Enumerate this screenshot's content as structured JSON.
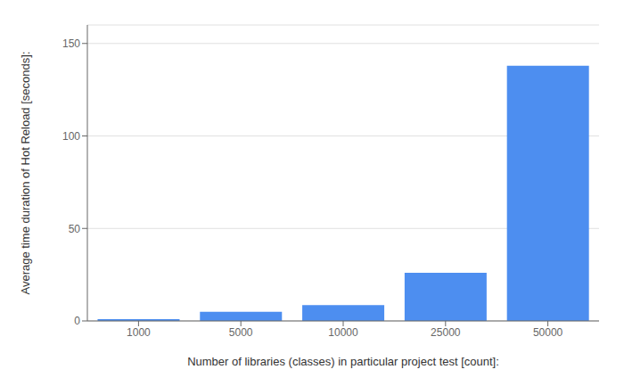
{
  "chart_data": {
    "type": "bar",
    "categories": [
      "1000",
      "5000",
      "10000",
      "25000",
      "50000"
    ],
    "values": [
      1.0,
      5.0,
      8.5,
      26.0,
      138.0
    ],
    "color": "#4d8ef0",
    "xlabel": "Number of libraries (classes) in particular project test [count]:",
    "ylabel": "Average time duration of Hot Reload [seconds]:",
    "ylim": [
      0,
      160
    ],
    "yticks": [
      0,
      50,
      100,
      150
    ],
    "grid": true
  }
}
